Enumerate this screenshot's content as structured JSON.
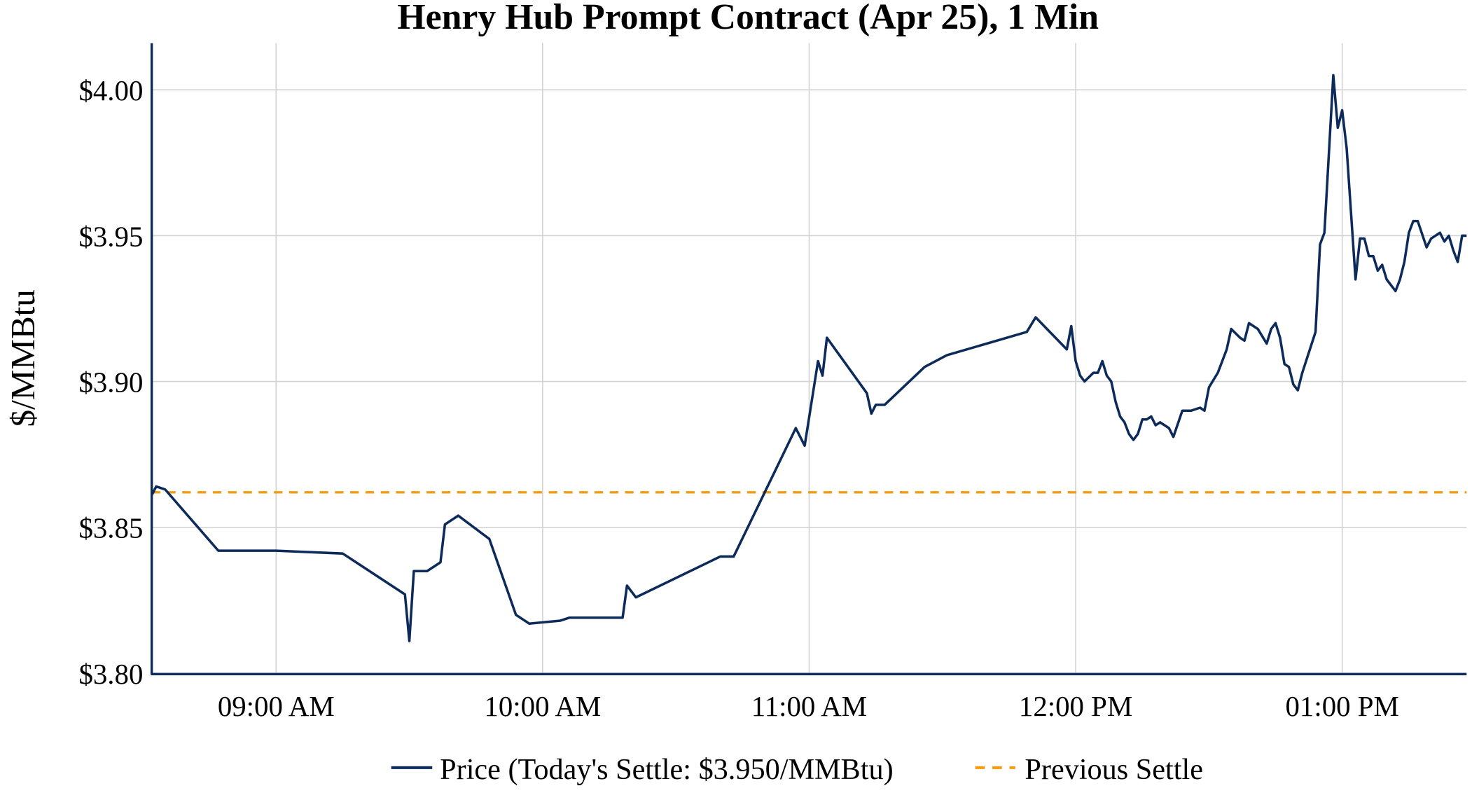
{
  "chart_data": {
    "type": "line",
    "title": "Henry Hub Prompt Contract (Apr 25), 1 Min",
    "xlabel": "",
    "ylabel": "$/MMBtu",
    "xlim": [
      "08:32",
      "13:28"
    ],
    "ylim": [
      3.8,
      4.016
    ],
    "grid": true,
    "legend_position": "bottom",
    "x_ticks": [
      {
        "t": "09:00",
        "label": "09:00 AM"
      },
      {
        "t": "10:00",
        "label": "10:00 AM"
      },
      {
        "t": "11:00",
        "label": "11:00 AM"
      },
      {
        "t": "12:00",
        "label": "12:00 PM"
      },
      {
        "t": "13:00",
        "label": "01:00 PM"
      }
    ],
    "y_ticks": [
      {
        "v": 3.8,
        "label": "$3.80"
      },
      {
        "v": 3.85,
        "label": "$3.85"
      },
      {
        "v": 3.9,
        "label": "$3.90"
      },
      {
        "v": 3.95,
        "label": "$3.95"
      },
      {
        "v": 4.0,
        "label": "$4.00"
      }
    ],
    "series": [
      {
        "name": "Price (Today's Settle: $3.950/MMBtu)",
        "color": "#0d2b5a",
        "style": "solid",
        "x": [
          "08:32",
          "08:33",
          "08:35",
          "08:47",
          "09:00",
          "09:15",
          "09:29",
          "09:30",
          "09:31",
          "09:34",
          "09:37",
          "09:38",
          "09:41",
          "09:48",
          "09:54",
          "09:57",
          "10:04",
          "10:06",
          "10:18",
          "10:19",
          "10:21",
          "10:40",
          "10:43",
          "10:57",
          "10:59",
          "11:02",
          "11:03",
          "11:04",
          "11:13",
          "11:14",
          "11:15",
          "11:17",
          "11:26",
          "11:31",
          "11:49",
          "11:51",
          "11:58",
          "11:59",
          "12:00",
          "12:01",
          "12:02",
          "12:04",
          "12:05",
          "12:06",
          "12:07",
          "12:08",
          "12:09",
          "12:10",
          "12:11",
          "12:12",
          "12:13",
          "12:14",
          "12:15",
          "12:16",
          "12:17",
          "12:18",
          "12:19",
          "12:21",
          "12:22",
          "12:24",
          "12:26",
          "12:28",
          "12:29",
          "12:30",
          "12:32",
          "12:34",
          "12:35",
          "12:37",
          "12:38",
          "12:39",
          "12:41",
          "12:43",
          "12:44",
          "12:45",
          "12:46",
          "12:47",
          "12:48",
          "12:49",
          "12:50",
          "12:51",
          "12:54",
          "12:55",
          "12:56",
          "12:58",
          "12:59",
          "13:00",
          "13:01",
          "13:03",
          "13:04",
          "13:05",
          "13:06",
          "13:07",
          "13:08",
          "13:09",
          "13:10",
          "13:12",
          "13:13",
          "13:14",
          "13:15",
          "13:16",
          "13:17",
          "13:19",
          "13:20",
          "13:22",
          "13:23",
          "13:24",
          "13:25",
          "13:26",
          "13:27",
          "13:28"
        ],
        "y": [
          3.861,
          3.864,
          3.863,
          3.842,
          3.842,
          3.841,
          3.827,
          3.811,
          3.835,
          3.835,
          3.838,
          3.851,
          3.854,
          3.846,
          3.82,
          3.817,
          3.818,
          3.819,
          3.819,
          3.83,
          3.826,
          3.84,
          3.84,
          3.884,
          3.878,
          3.907,
          3.902,
          3.915,
          3.896,
          3.889,
          3.892,
          3.892,
          3.905,
          3.909,
          3.917,
          3.922,
          3.911,
          3.919,
          3.907,
          3.902,
          3.9,
          3.903,
          3.903,
          3.907,
          3.902,
          3.9,
          3.893,
          3.888,
          3.886,
          3.882,
          3.88,
          3.882,
          3.887,
          3.887,
          3.888,
          3.885,
          3.886,
          3.884,
          3.881,
          3.89,
          3.89,
          3.891,
          3.89,
          3.898,
          3.903,
          3.911,
          3.918,
          3.915,
          3.914,
          3.92,
          3.918,
          3.913,
          3.918,
          3.92,
          3.915,
          3.906,
          3.905,
          3.899,
          3.897,
          3.903,
          3.917,
          3.947,
          3.951,
          4.005,
          3.987,
          3.993,
          3.98,
          3.935,
          3.949,
          3.949,
          3.943,
          3.943,
          3.938,
          3.94,
          3.935,
          3.931,
          3.935,
          3.941,
          3.951,
          3.955,
          3.955,
          3.946,
          3.949,
          3.951,
          3.948,
          3.95,
          3.945,
          3.941,
          3.95,
          3.95
        ]
      },
      {
        "name": "Previous Settle",
        "color": "#f39c12",
        "style": "dashed",
        "value": 3.862
      }
    ]
  }
}
